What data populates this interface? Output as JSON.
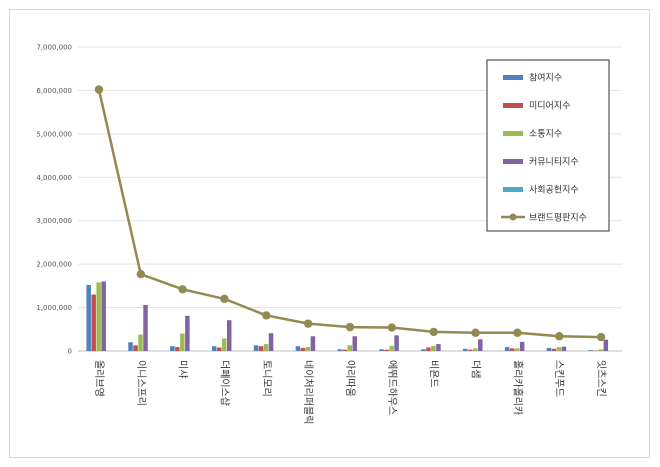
{
  "chart_data": {
    "type": "bar",
    "title": "",
    "xlabel": "",
    "ylabel": "",
    "ylim": [
      0,
      7000000
    ],
    "yticks": [
      "0",
      "1,000,000",
      "2,000,000",
      "3,000,000",
      "4,000,000",
      "5,000,000",
      "6,000,000",
      "7,000,000"
    ],
    "grid": true,
    "legend_position": "top-right",
    "categories": [
      "올리브영",
      "이니스프리",
      "미샤",
      "더페이스샵",
      "토니모리",
      "네이처리퍼블릭",
      "아리따움",
      "에뛰드하우스",
      "비욘드",
      "더샘",
      "홀리카홀리카",
      "스킨푸드",
      "잇츠스킨"
    ],
    "series": [
      {
        "name": "참여지수",
        "color": "#4f81bd",
        "kind": "bar",
        "values": [
          1520000,
          200000,
          110000,
          110000,
          130000,
          110000,
          40000,
          40000,
          40000,
          50000,
          90000,
          70000,
          20000
        ]
      },
      {
        "name": "미디어지수",
        "color": "#c0504d",
        "kind": "bar",
        "values": [
          1300000,
          130000,
          90000,
          80000,
          110000,
          70000,
          30000,
          30000,
          80000,
          30000,
          60000,
          50000,
          10000
        ]
      },
      {
        "name": "소통지수",
        "color": "#9bbb59",
        "kind": "bar",
        "values": [
          1580000,
          380000,
          400000,
          290000,
          160000,
          90000,
          130000,
          120000,
          120000,
          60000,
          60000,
          90000,
          40000
        ]
      },
      {
        "name": "커뮤니티지수",
        "color": "#8064a2",
        "kind": "bar",
        "values": [
          1600000,
          1060000,
          810000,
          710000,
          410000,
          340000,
          340000,
          360000,
          160000,
          270000,
          210000,
          100000,
          260000
        ]
      },
      {
        "name": "사회공헌지수",
        "color": "#4bacc6",
        "kind": "bar",
        "values": [
          0,
          0,
          0,
          0,
          0,
          0,
          0,
          0,
          0,
          0,
          0,
          0,
          0
        ]
      },
      {
        "name": "브랜드평판지수",
        "color": "#938953",
        "kind": "line",
        "values": [
          6020000,
          1770000,
          1420000,
          1200000,
          820000,
          630000,
          550000,
          540000,
          440000,
          420000,
          420000,
          340000,
          320000
        ]
      }
    ]
  }
}
